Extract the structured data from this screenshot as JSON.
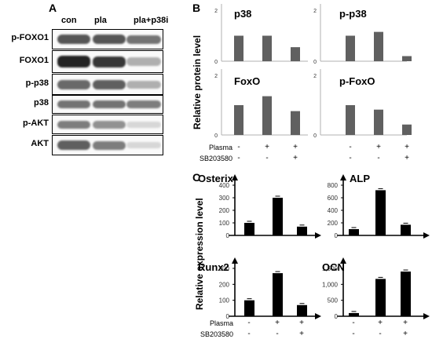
{
  "panelA": {
    "letter": "A",
    "lanes": [
      "con",
      "pla",
      "pla+p38i"
    ],
    "rows": [
      {
        "label": "p-FOXO1",
        "intensity": [
          0.75,
          0.75,
          0.6
        ]
      },
      {
        "label": "FOXO1",
        "intensity": [
          1.0,
          0.9,
          0.3
        ]
      },
      {
        "label": "p-p38",
        "intensity": [
          0.65,
          0.7,
          0.3
        ]
      },
      {
        "label": "p38",
        "intensity": [
          0.6,
          0.6,
          0.55
        ]
      },
      {
        "label": "p-AKT",
        "intensity": [
          0.55,
          0.45,
          0.1
        ]
      },
      {
        "label": "AKT",
        "intensity": [
          0.7,
          0.55,
          0.1
        ]
      }
    ]
  },
  "panelB": {
    "letter": "B",
    "ylabel": "Relative protein level",
    "treatments": {
      "row1_label": "Plasma",
      "row1_signs": [
        "-",
        "+",
        "+"
      ],
      "row2_label": "SB203580",
      "row2_signs": [
        "-",
        "-",
        "+"
      ]
    }
  },
  "panelC": {
    "letter": "C",
    "ylabel": "Relative expression level",
    "treatments": {
      "row1_label": "Plasma",
      "row1_signs": [
        "-",
        "+",
        "+"
      ],
      "row2_label": "SB203580",
      "row2_signs": [
        "-",
        "-",
        "+"
      ]
    }
  },
  "chart_data": [
    {
      "type": "bar",
      "title": "p38",
      "categories": [
        "con",
        "pla",
        "pla+p38i"
      ],
      "values": [
        1.0,
        1.0,
        0.55
      ],
      "ylim": [
        0,
        2
      ],
      "yticks": [
        "0",
        "2"
      ]
    },
    {
      "type": "bar",
      "title": "p-p38",
      "categories": [
        "con",
        "pla",
        "pla+p38i"
      ],
      "values": [
        1.0,
        1.15,
        0.2
      ],
      "ylim": [
        0,
        2
      ],
      "yticks": [
        "0",
        "2"
      ]
    },
    {
      "type": "bar",
      "title": "FoxO",
      "categories": [
        "con",
        "pla",
        "pla+p38i"
      ],
      "values": [
        1.0,
        1.3,
        0.8
      ],
      "ylim": [
        0,
        2
      ],
      "yticks": [
        "0",
        "2"
      ]
    },
    {
      "type": "bar",
      "title": "p-FoxO",
      "categories": [
        "con",
        "pla",
        "pla+p38i"
      ],
      "values": [
        1.0,
        0.85,
        0.35
      ],
      "ylim": [
        0,
        2
      ],
      "yticks": [
        "0",
        "2"
      ]
    },
    {
      "type": "bar",
      "title": "Osterix",
      "categories": [
        "con",
        "pla",
        "pla+p38i"
      ],
      "values": [
        100,
        300,
        70
      ],
      "ylim": [
        0,
        400
      ],
      "yticks": [
        "0",
        "100",
        "200",
        "300",
        "400"
      ]
    },
    {
      "type": "bar",
      "title": "ALP",
      "categories": [
        "con",
        "pla",
        "pla+p38i"
      ],
      "values": [
        100,
        720,
        170
      ],
      "ylim": [
        0,
        800
      ],
      "yticks": [
        "0",
        "200",
        "400",
        "600",
        "800"
      ]
    },
    {
      "type": "bar",
      "title": "Runx2",
      "categories": [
        "con",
        "pla",
        "pla+p38i"
      ],
      "values": [
        100,
        270,
        70
      ],
      "ylim": [
        0,
        300
      ],
      "yticks": [
        "0",
        "100",
        "200",
        "300"
      ]
    },
    {
      "type": "bar",
      "title": "OCN",
      "categories": [
        "con",
        "pla",
        "pla+p38i"
      ],
      "values": [
        100,
        1170,
        1400
      ],
      "ylim": [
        0,
        1500
      ],
      "yticks": [
        "0",
        "500",
        "1,000",
        "1,500"
      ]
    }
  ],
  "colors": {
    "gray_bar": "#606060",
    "black_bar": "#000000"
  }
}
